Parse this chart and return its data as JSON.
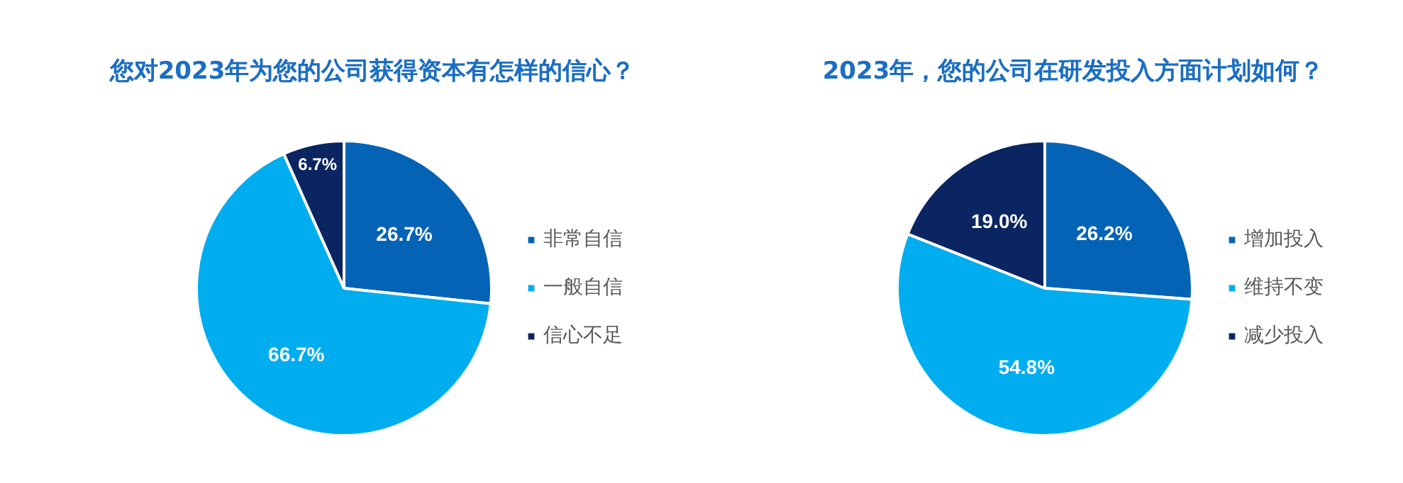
{
  "chart_data": [
    {
      "type": "pie",
      "title": "您对2023年为您的公司获得资本有怎样的信心？",
      "categories": [
        "非常自信",
        "一般自信",
        "信心不足"
      ],
      "values": [
        26.7,
        66.7,
        6.7
      ],
      "value_labels": [
        "26.7%",
        "66.7%",
        "6.7%"
      ],
      "colors": [
        "#0563b5",
        "#00adef",
        "#0a2561"
      ],
      "legend": "right"
    },
    {
      "type": "pie",
      "title": "2023年，您的公司在研发投入方面计划如何？",
      "categories": [
        "增加投入",
        "维持不变",
        "减少投入"
      ],
      "values": [
        26.2,
        54.8,
        19.0
      ],
      "value_labels": [
        "26.2%",
        "54.8%",
        "19.0%"
      ],
      "colors": [
        "#0563b5",
        "#00adef",
        "#0a2561"
      ],
      "legend": "right"
    }
  ]
}
